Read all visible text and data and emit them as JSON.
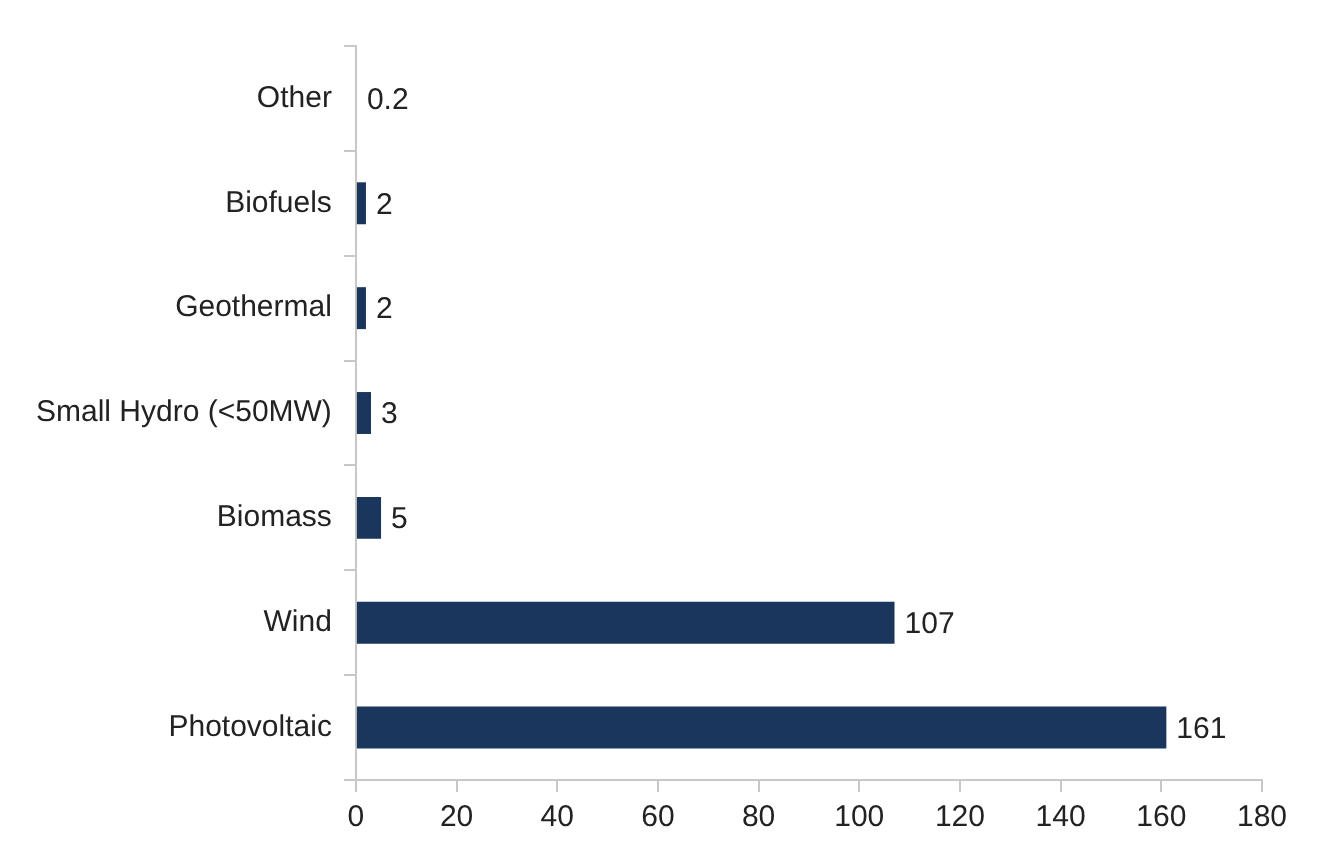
{
  "chart_data": {
    "type": "bar",
    "orientation": "horizontal",
    "categories": [
      "Other",
      "Biofuels",
      "Geothermal",
      "Small Hydro (<50MW)",
      "Biomass",
      "Wind",
      "Photovoltaic"
    ],
    "values": [
      0.2,
      2,
      2,
      3,
      5,
      107,
      161
    ],
    "color": "#1b365d",
    "xlim": [
      0,
      180
    ],
    "xticks": [
      0,
      20,
      40,
      60,
      80,
      100,
      120,
      140,
      160,
      180
    ],
    "grid": false,
    "data_labels": true
  }
}
